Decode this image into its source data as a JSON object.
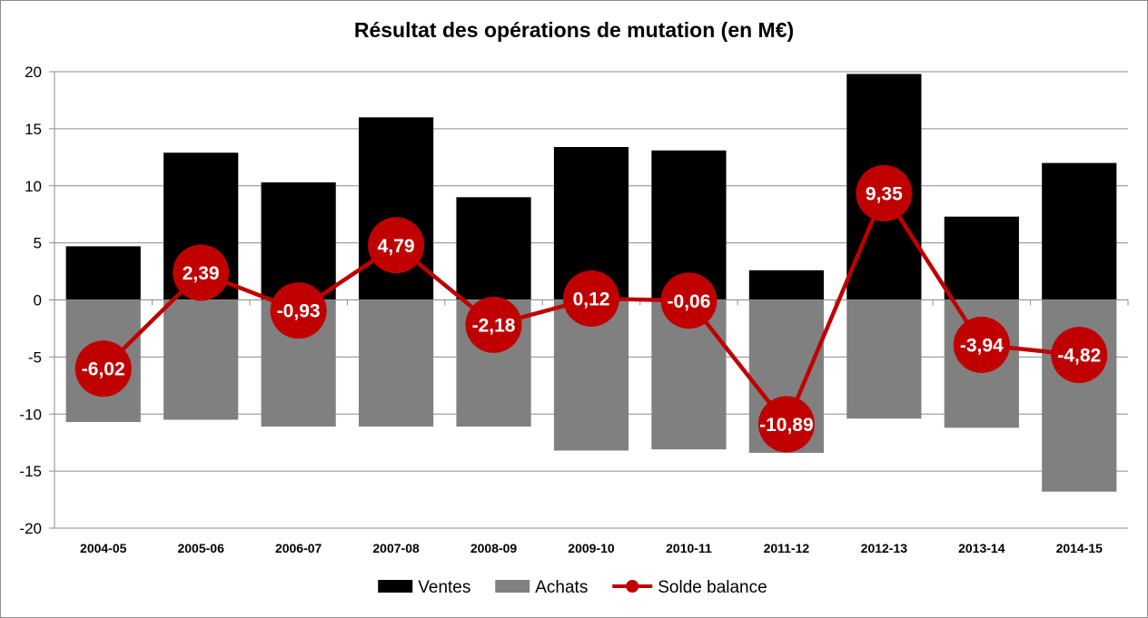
{
  "chart_data": {
    "type": "bar",
    "title": "Résultat des opérations de mutation (en M€)",
    "categories": [
      "2004-05",
      "2005-06",
      "2006-07",
      "2007-08",
      "2008-09",
      "2009-10",
      "2010-11",
      "2011-12",
      "2012-13",
      "2013-14",
      "2014-15"
    ],
    "series": [
      {
        "name": "Ventes",
        "type": "bar",
        "color": "#000000",
        "values": [
          4.7,
          12.9,
          10.3,
          16.0,
          9.0,
          13.4,
          13.1,
          2.6,
          19.8,
          7.3,
          12.0
        ]
      },
      {
        "name": "Achats",
        "type": "bar",
        "color": "#808080",
        "values": [
          -10.7,
          -10.5,
          -11.1,
          -11.1,
          -11.1,
          -13.2,
          -13.1,
          -13.4,
          -10.4,
          -11.2,
          -16.8
        ]
      },
      {
        "name": "Solde balance",
        "type": "line",
        "color": "#c00000",
        "values": [
          -6.02,
          2.39,
          -0.93,
          4.79,
          -2.18,
          0.12,
          -0.06,
          -10.89,
          9.35,
          -3.94,
          -4.82
        ],
        "labels": [
          "-6,02",
          "2,39",
          "-0,93",
          "4,79",
          "-2,18",
          "0,12",
          "-0,06",
          "-10,89",
          "9,35",
          "-3,94",
          "-4,82"
        ]
      }
    ],
    "ylim": [
      -20,
      20
    ],
    "yticks": [
      20,
      15,
      10,
      5,
      0,
      -5,
      -10,
      -15,
      -20
    ],
    "grid": true,
    "legend_position": "bottom",
    "xlabel": "",
    "ylabel": ""
  }
}
